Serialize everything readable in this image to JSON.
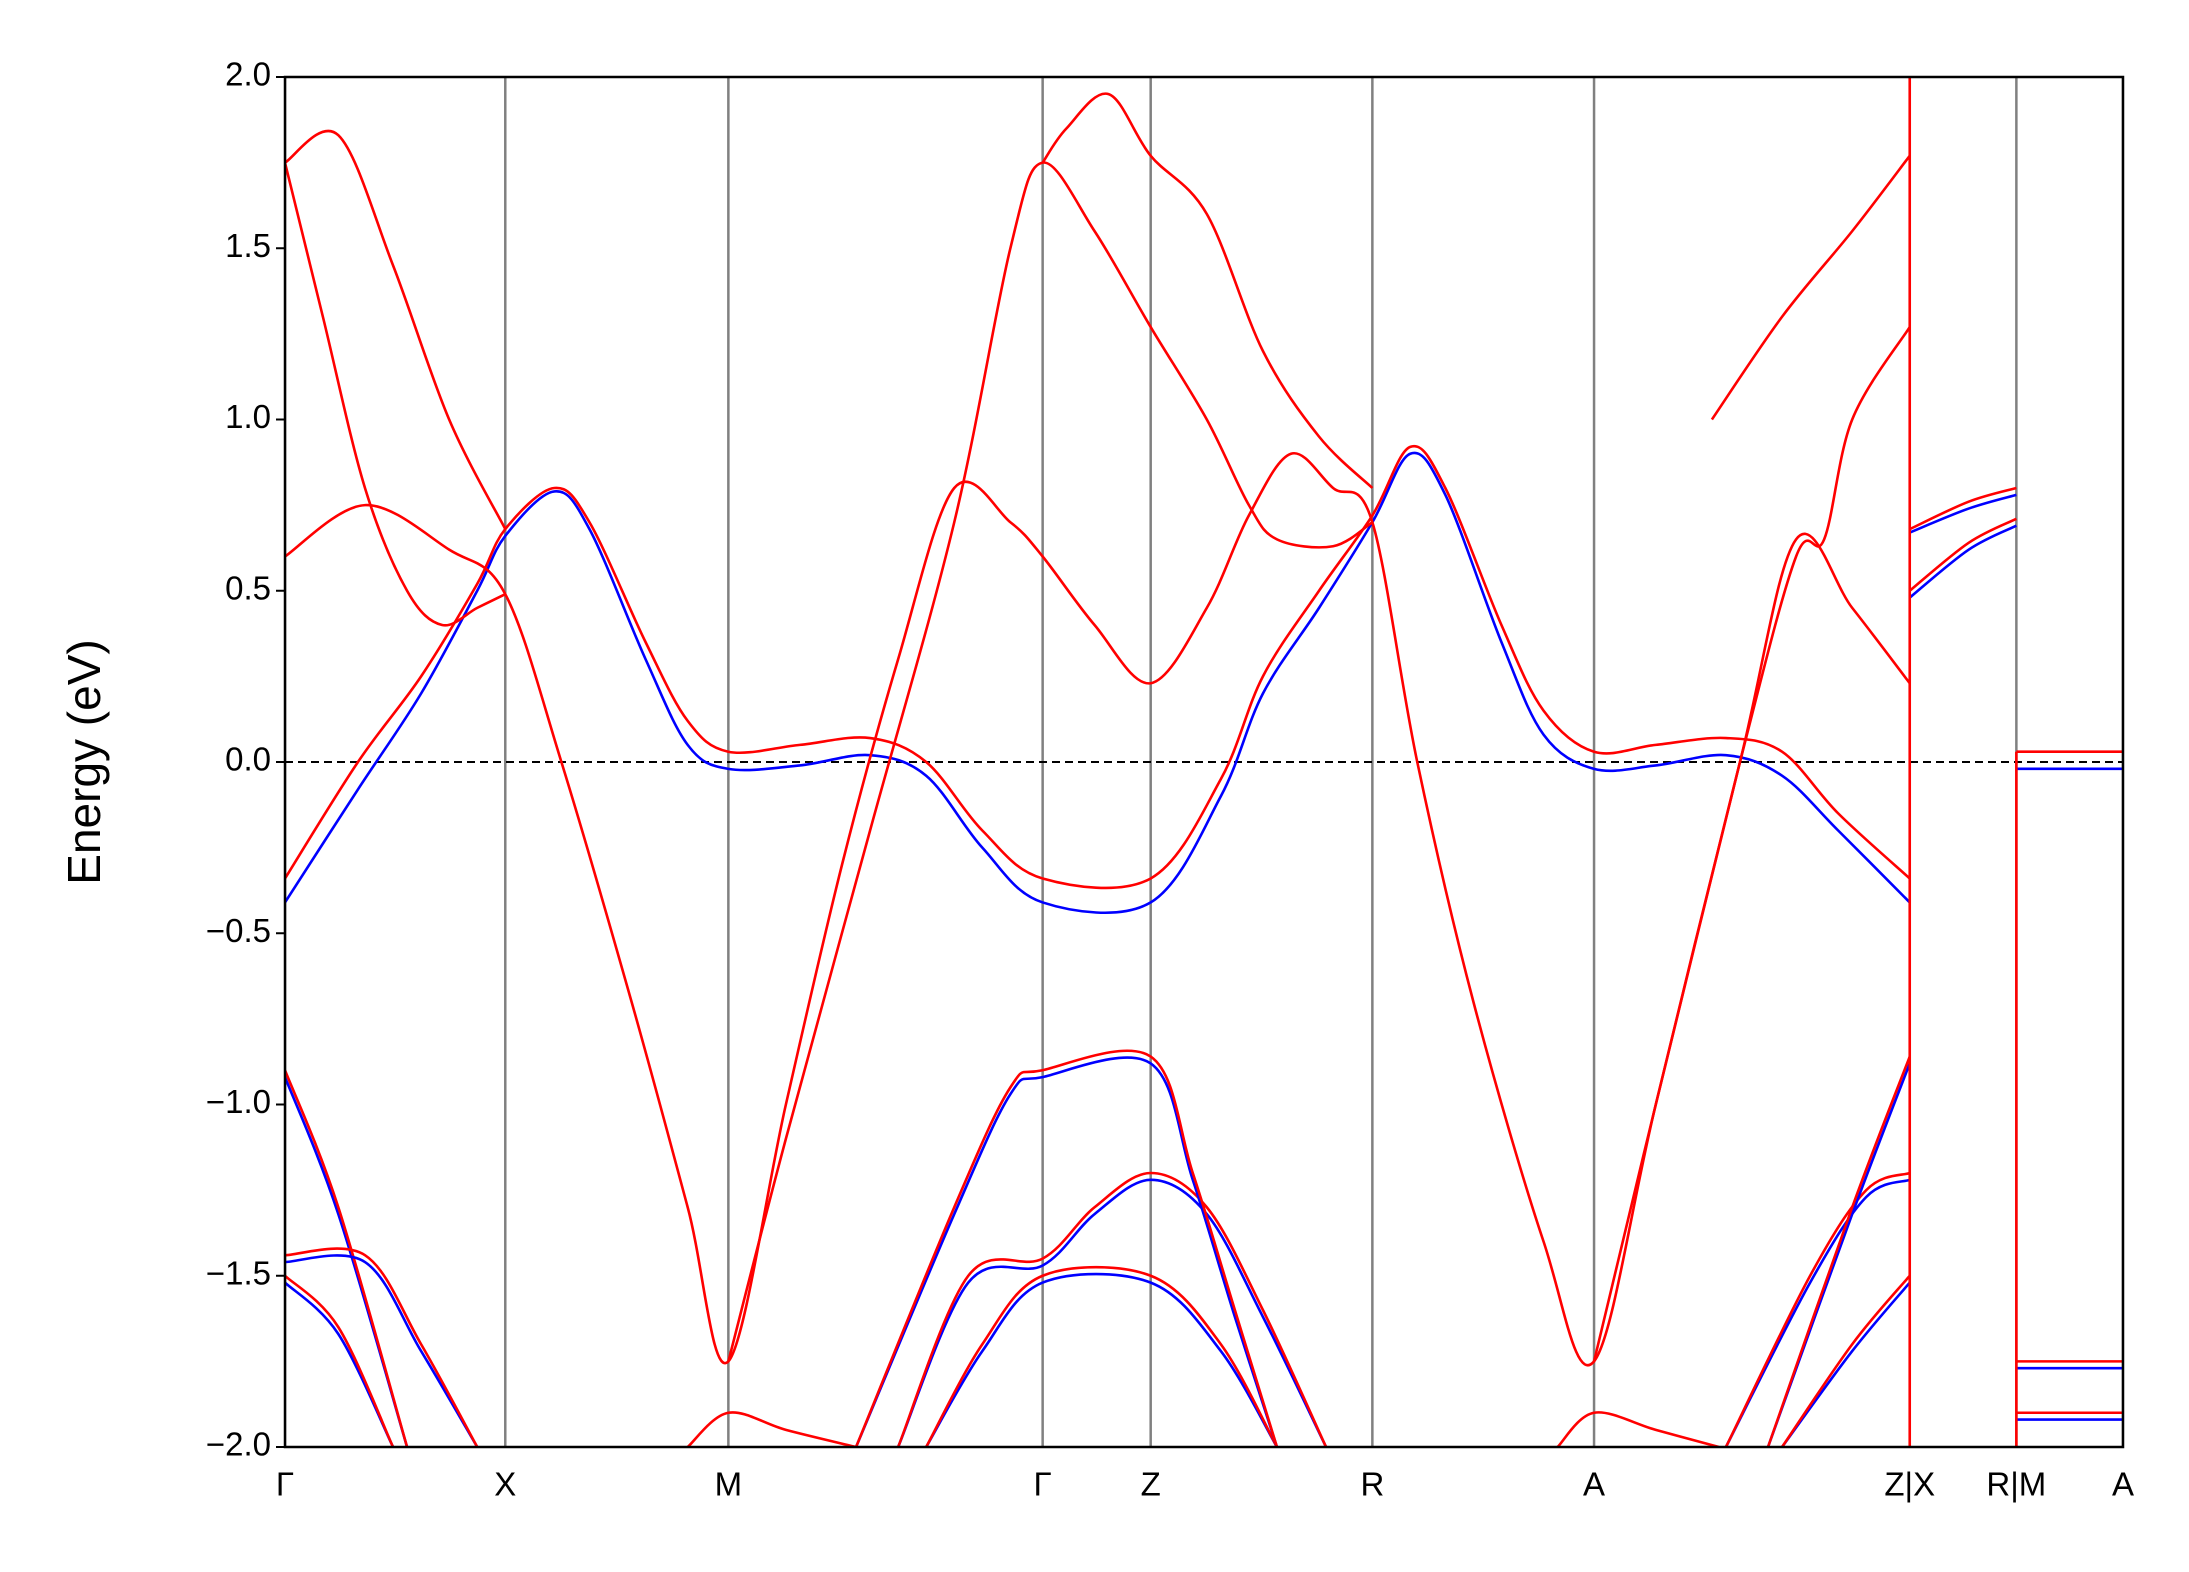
{
  "chart_data": {
    "type": "line",
    "ylabel": "Energy (eV)",
    "xlim": [
      0,
      13.1
    ],
    "ylim": [
      -2,
      2
    ],
    "xticks": [
      {
        "value": 0,
        "label": "Γ"
      },
      {
        "value": 1.57,
        "label": "X"
      },
      {
        "value": 3.16,
        "label": "M"
      },
      {
        "value": 5.4,
        "label": "Γ"
      },
      {
        "value": 6.17,
        "label": "Z"
      },
      {
        "value": 7.75,
        "label": "R"
      },
      {
        "value": 9.33,
        "label": "A"
      },
      {
        "value": 11.58,
        "label": "Z|X"
      },
      {
        "value": 12.34,
        "label": "R|M"
      },
      {
        "value": 13.1,
        "label": "A"
      }
    ],
    "yticks": [
      {
        "value": -2,
        "label": "−2.0"
      },
      {
        "value": -1.5,
        "label": "−1.5"
      },
      {
        "value": -1,
        "label": "−1.0"
      },
      {
        "value": -0.5,
        "label": "−0.5"
      },
      {
        "value": 0,
        "label": "0.0"
      },
      0.5,
      {
        "value": 1,
        "label": "1.0"
      },
      1.5,
      {
        "value": 2,
        "label": "2.0"
      }
    ],
    "fermi_level": 0,
    "vline_color": "#808080",
    "series": [
      {
        "color": "#0000ff",
        "x": [
          0,
          0.52,
          0.97,
          1.37,
          1.57,
          1.92,
          2.17,
          2.57,
          2.87,
          3.16,
          3.67,
          4.17,
          4.57,
          4.97,
          5.4,
          6.17,
          6.67,
          6.97,
          7.37,
          7.75,
          8.02,
          8.27,
          8.67,
          8.97,
          9.33,
          9.77,
          10.27,
          10.67,
          11.07,
          11.58
        ],
        "values": [
          -0.41,
          -0.08,
          0.2,
          0.5,
          0.66,
          0.79,
          0.68,
          0.3,
          0.05,
          -0.02,
          -0.01,
          0.02,
          -0.04,
          -0.25,
          -0.41,
          -0.41,
          -0.1,
          0.2,
          0.45,
          0.7,
          0.9,
          0.78,
          0.35,
          0.08,
          -0.02,
          -0.01,
          0.02,
          -0.04,
          -0.2,
          -0.41
        ]
      },
      {
        "color": "#ff0000",
        "x": [
          0,
          0.52,
          0.97,
          1.37,
          1.57,
          1.92,
          2.17,
          2.57,
          2.87,
          3.16,
          3.67,
          4.17,
          4.57,
          4.97,
          5.4,
          6.17,
          6.67,
          6.97,
          7.37,
          7.75,
          8.02,
          8.27,
          8.67,
          8.97,
          9.33,
          9.77,
          10.27,
          10.67,
          11.07,
          11.58
        ],
        "values": [
          -0.34,
          0.0,
          0.25,
          0.52,
          0.68,
          0.8,
          0.7,
          0.35,
          0.12,
          0.03,
          0.05,
          0.07,
          0.0,
          -0.2,
          -0.34,
          -0.34,
          -0.05,
          0.25,
          0.5,
          0.72,
          0.92,
          0.8,
          0.4,
          0.15,
          0.03,
          0.05,
          0.07,
          0.03,
          -0.15,
          -0.34
        ]
      },
      {
        "color": "#ff0000",
        "x": [
          0,
          0.57,
          1.17,
          1.57,
          1.97,
          2.47,
          2.87,
          3.16,
          3.57,
          3.97,
          4.37,
          4.77,
          5.17,
          5.4,
          5.77,
          6.17,
          6.57,
          6.87,
          7.17,
          7.47,
          7.75,
          8.07,
          8.47,
          8.97,
          9.33,
          9.77,
          10.37,
          10.77,
          11.17,
          11.58
        ],
        "values": [
          0.6,
          0.75,
          0.62,
          0.49,
          0.0,
          -0.7,
          -1.3,
          -1.75,
          -1.0,
          -0.3,
          0.3,
          0.8,
          0.7,
          0.6,
          0.4,
          0.23,
          0.45,
          0.72,
          0.9,
          0.8,
          0.7,
          0.0,
          -0.7,
          -1.4,
          -1.75,
          -1.0,
          0.0,
          0.65,
          0.45,
          0.23
        ]
      },
      {
        "color": "#ff0000",
        "x": [
          0,
          0.38,
          0.77,
          1.17,
          1.57
        ],
        "values": [
          1.75,
          1.83,
          1.45,
          1.0,
          0.68
        ]
      },
      {
        "color": "#ff0000",
        "x": [
          0,
          0.27,
          0.57,
          0.87,
          1.12,
          1.37,
          1.57
        ],
        "values": [
          1.75,
          1.3,
          0.8,
          0.5,
          0.4,
          0.45,
          0.49
        ]
      },
      {
        "color": "#ff0000",
        "x": [
          3.16,
          3.57,
          4.17,
          4.77,
          5.17,
          5.4,
          5.77,
          6.17,
          6.57,
          6.87,
          7.07,
          7.47,
          7.75
        ],
        "values": [
          -1.75,
          -1.1,
          -0.2,
          0.7,
          1.5,
          1.75,
          1.55,
          1.27,
          1.0,
          0.75,
          0.65,
          0.63,
          0.7
        ]
      },
      {
        "color": "#ff0000",
        "x": [
          5.4,
          5.57,
          5.87,
          6.17,
          6.57,
          6.97,
          7.37,
          7.75
        ],
        "values": [
          1.75,
          1.85,
          1.95,
          1.77,
          1.6,
          1.2,
          0.95,
          0.8
        ]
      },
      {
        "color": "#ff0000",
        "x": [
          9.33,
          9.77,
          10.37,
          10.77,
          10.97,
          11.17,
          11.58
        ],
        "values": [
          -1.75,
          -1.0,
          0.0,
          0.6,
          0.65,
          1.0,
          1.27
        ]
      },
      {
        "color": "#ff0000",
        "x": [
          10.17,
          10.67,
          11.17,
          11.58
        ],
        "values": [
          1.0,
          1.3,
          1.55,
          1.77
        ]
      },
      {
        "color": "#0000ff",
        "x": [
          0,
          0.38,
          0.87
        ],
        "values": [
          -0.92,
          -1.32,
          -2.0
        ]
      },
      {
        "color": "#ff0000",
        "x": [
          0,
          0.38,
          0.87
        ],
        "values": [
          -0.9,
          -1.3,
          -2.0
        ]
      },
      {
        "color": "#0000ff",
        "x": [
          0,
          0.57,
          0.97,
          1.37
        ],
        "values": [
          -1.46,
          -1.46,
          -1.72,
          -2.0
        ]
      },
      {
        "color": "#ff0000",
        "x": [
          0,
          0.57,
          0.97,
          1.37
        ],
        "values": [
          -1.44,
          -1.44,
          -1.7,
          -2.0
        ]
      },
      {
        "color": "#0000ff",
        "x": [
          0,
          0.38,
          0.77
        ],
        "values": [
          -1.52,
          -1.67,
          -2.0
        ]
      },
      {
        "color": "#ff0000",
        "x": [
          0,
          0.38,
          0.77
        ],
        "values": [
          -1.5,
          -1.65,
          -2.0
        ]
      },
      {
        "color": "#ff0000",
        "x": [
          2.87,
          3.16,
          3.57,
          4.07
        ],
        "values": [
          -2.0,
          -1.9,
          -1.95,
          -2.0
        ]
      },
      {
        "color": "#0000ff",
        "x": [
          4.37,
          4.87,
          5.4,
          5.77,
          6.17,
          6.57,
          6.97,
          7.42
        ],
        "values": [
          -2.0,
          -1.52,
          -1.47,
          -1.32,
          -1.22,
          -1.32,
          -1.62,
          -2.0
        ]
      },
      {
        "color": "#ff0000",
        "x": [
          4.37,
          4.87,
          5.4,
          5.77,
          6.17,
          6.57,
          6.97,
          7.42
        ],
        "values": [
          -2.0,
          -1.5,
          -1.45,
          -1.3,
          -1.2,
          -1.3,
          -1.6,
          -2.0
        ]
      },
      {
        "color": "#0000ff",
        "x": [
          4.57,
          4.97,
          5.4,
          6.17,
          6.67,
          7.07
        ],
        "values": [
          -2.0,
          -1.72,
          -1.52,
          -1.52,
          -1.72,
          -2.0
        ]
      },
      {
        "color": "#ff0000",
        "x": [
          4.57,
          4.97,
          5.4,
          6.17,
          6.67,
          7.07
        ],
        "values": [
          -2.0,
          -1.7,
          -1.5,
          -1.5,
          -1.7,
          -2.0
        ]
      },
      {
        "color": "#0000ff",
        "x": [
          4.07,
          4.77,
          5.17,
          5.4,
          6.17,
          6.47,
          6.77,
          7.07
        ],
        "values": [
          -2.0,
          -1.32,
          -0.97,
          -0.92,
          -0.88,
          -1.22,
          -1.62,
          -2.0
        ]
      },
      {
        "color": "#ff0000",
        "x": [
          4.07,
          4.77,
          5.17,
          5.4,
          6.17,
          6.47,
          6.77,
          7.07
        ],
        "values": [
          -2.0,
          -1.3,
          -0.95,
          -0.9,
          -0.86,
          -1.2,
          -1.6,
          -2.0
        ]
      },
      {
        "color": "#ff0000",
        "x": [
          9.07,
          9.33,
          9.77,
          10.22
        ],
        "values": [
          -2.0,
          -1.9,
          -1.95,
          -2.0
        ]
      },
      {
        "color": "#0000ff",
        "x": [
          10.27,
          10.87,
          11.27,
          11.58
        ],
        "values": [
          -2.0,
          -1.52,
          -1.27,
          -1.22
        ]
      },
      {
        "color": "#ff0000",
        "x": [
          10.27,
          10.87,
          11.27,
          11.58
        ],
        "values": [
          -2.0,
          -1.5,
          -1.25,
          -1.2
        ]
      },
      {
        "color": "#0000ff",
        "x": [
          10.67,
          11.17,
          11.58
        ],
        "values": [
          -2.0,
          -1.72,
          -1.52
        ]
      },
      {
        "color": "#ff0000",
        "x": [
          10.67,
          11.17,
          11.58
        ],
        "values": [
          -2.0,
          -1.7,
          -1.5
        ]
      },
      {
        "color": "#0000ff",
        "x": [
          10.57,
          11.17,
          11.58
        ],
        "values": [
          -2.0,
          -1.32,
          -0.88
        ]
      },
      {
        "color": "#ff0000",
        "x": [
          10.57,
          11.17,
          11.58
        ],
        "values": [
          -2.0,
          -1.3,
          -0.86
        ]
      },
      {
        "color": "#0000ff",
        "x": [
          11.58,
          12.0,
          12.34
        ],
        "values": [
          0.67,
          0.74,
          0.78
        ]
      },
      {
        "color": "#ff0000",
        "x": [
          11.58,
          12.0,
          12.34
        ],
        "values": [
          0.68,
          0.76,
          0.8
        ]
      },
      {
        "color": "#0000ff",
        "x": [
          11.58,
          12.0,
          12.34
        ],
        "values": [
          0.48,
          0.62,
          0.69
        ]
      },
      {
        "color": "#ff0000",
        "x": [
          11.58,
          12.0,
          12.34
        ],
        "values": [
          0.5,
          0.64,
          0.71
        ]
      },
      {
        "color": "#0000ff",
        "x": [
          12.34,
          13.1
        ],
        "values": [
          -0.02,
          -0.02
        ]
      },
      {
        "color": "#ff0000",
        "x": [
          12.34,
          13.1
        ],
        "values": [
          0.03,
          0.03
        ]
      },
      {
        "color": "#0000ff",
        "x": [
          12.34,
          13.1
        ],
        "values": [
          -1.77,
          -1.77
        ]
      },
      {
        "color": "#ff0000",
        "x": [
          12.34,
          13.1
        ],
        "values": [
          -1.75,
          -1.75
        ]
      },
      {
        "color": "#0000ff",
        "x": [
          12.34,
          13.1
        ],
        "values": [
          -1.92,
          -1.92
        ]
      },
      {
        "color": "#ff0000",
        "x": [
          12.34,
          13.1
        ],
        "values": [
          -1.9,
          -1.9
        ]
      },
      {
        "color": "#ff0000",
        "x": [
          11.58,
          11.58
        ],
        "values": [
          -2.0,
          2.0
        ]
      },
      {
        "color": "#ff0000",
        "x": [
          12.34,
          12.34
        ],
        "values": [
          -2.0,
          0.03
        ]
      }
    ]
  }
}
